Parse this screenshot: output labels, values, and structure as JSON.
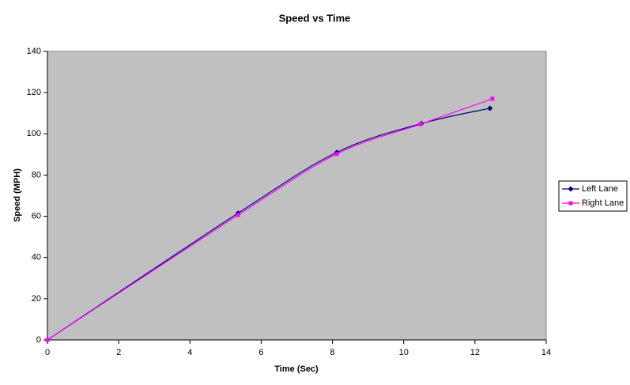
{
  "chart_data": {
    "type": "line",
    "title": "Speed vs Time",
    "x_label": "Time (Sec)",
    "y_label": "Speed (MPH)",
    "xlim": [
      0,
      14
    ],
    "xticks": [
      0,
      2,
      4,
      6,
      8,
      10,
      12,
      14
    ],
    "ylim": [
      0,
      140
    ],
    "yticks": [
      0,
      20,
      40,
      60,
      80,
      100,
      120,
      140
    ],
    "grid": false,
    "legend": "right",
    "smooth": true,
    "series": [
      {
        "name": "Left Lane",
        "color": "#000080",
        "marker": "diamond",
        "x": [
          0,
          5.35,
          8.12,
          10.5,
          12.42
        ],
        "values": [
          0,
          61.5,
          91,
          105,
          112.4
        ]
      },
      {
        "name": "Right Lane",
        "color": "#ff00ff",
        "marker": "square",
        "x": [
          0,
          5.35,
          8.12,
          10.47,
          12.49
        ],
        "values": [
          0,
          60.6,
          90.2,
          104.7,
          117
        ]
      }
    ]
  }
}
